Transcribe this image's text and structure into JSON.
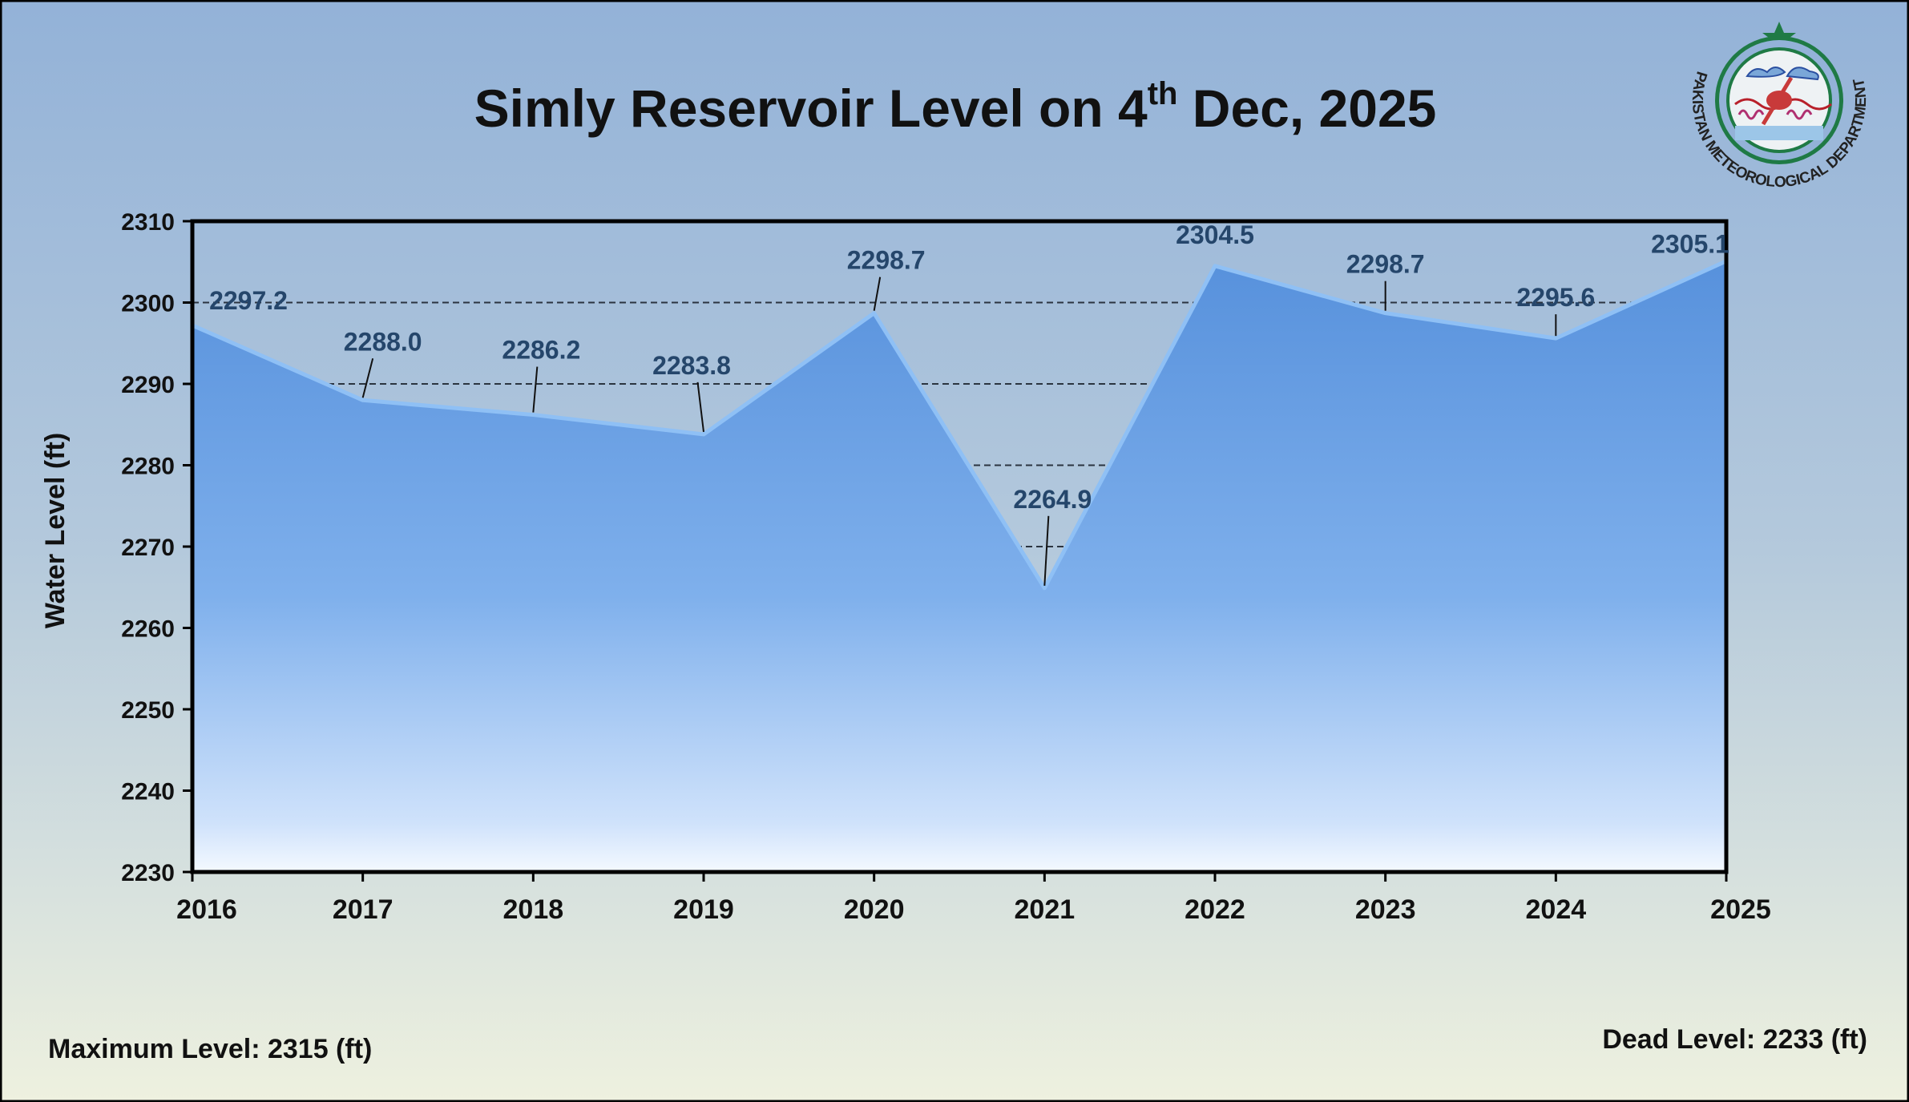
{
  "chart_data": {
    "type": "area",
    "title_main": "Simly Reservoir Level on 4",
    "title_sup": "th",
    "title_end": " Dec, 2025",
    "xlabel": "",
    "ylabel": "Water Level (ft)",
    "categories": [
      "2016",
      "2017",
      "2018",
      "2019",
      "2020",
      "2021",
      "2022",
      "2023",
      "2024",
      "2025"
    ],
    "values": [
      2297.2,
      2288.0,
      2286.2,
      2283.8,
      2298.7,
      2264.9,
      2304.5,
      2298.7,
      2295.6,
      2305.1
    ],
    "data_labels": [
      "2297.2",
      "2288.0",
      "2286.2",
      "2283.8",
      "2298.7",
      "2264.9",
      "2304.5",
      "2298.7",
      "2295.6",
      "2305.1"
    ],
    "ylim": [
      2230,
      2310
    ],
    "yticks": [
      "2230",
      "2240",
      "2250",
      "2260",
      "2270",
      "2280",
      "2290",
      "2300",
      "2310"
    ],
    "grid": "horizontal dashed",
    "legend": "none",
    "fill_color": "#5a95dd",
    "label_color": "#25466b"
  },
  "footer": {
    "max_level": "Maximum Level: 2315 (ft)",
    "dead_level": "Dead Level: 2233 (ft)"
  },
  "logo": {
    "text": "PAKISTAN METEOROLOGICAL DEPARTMENT"
  }
}
